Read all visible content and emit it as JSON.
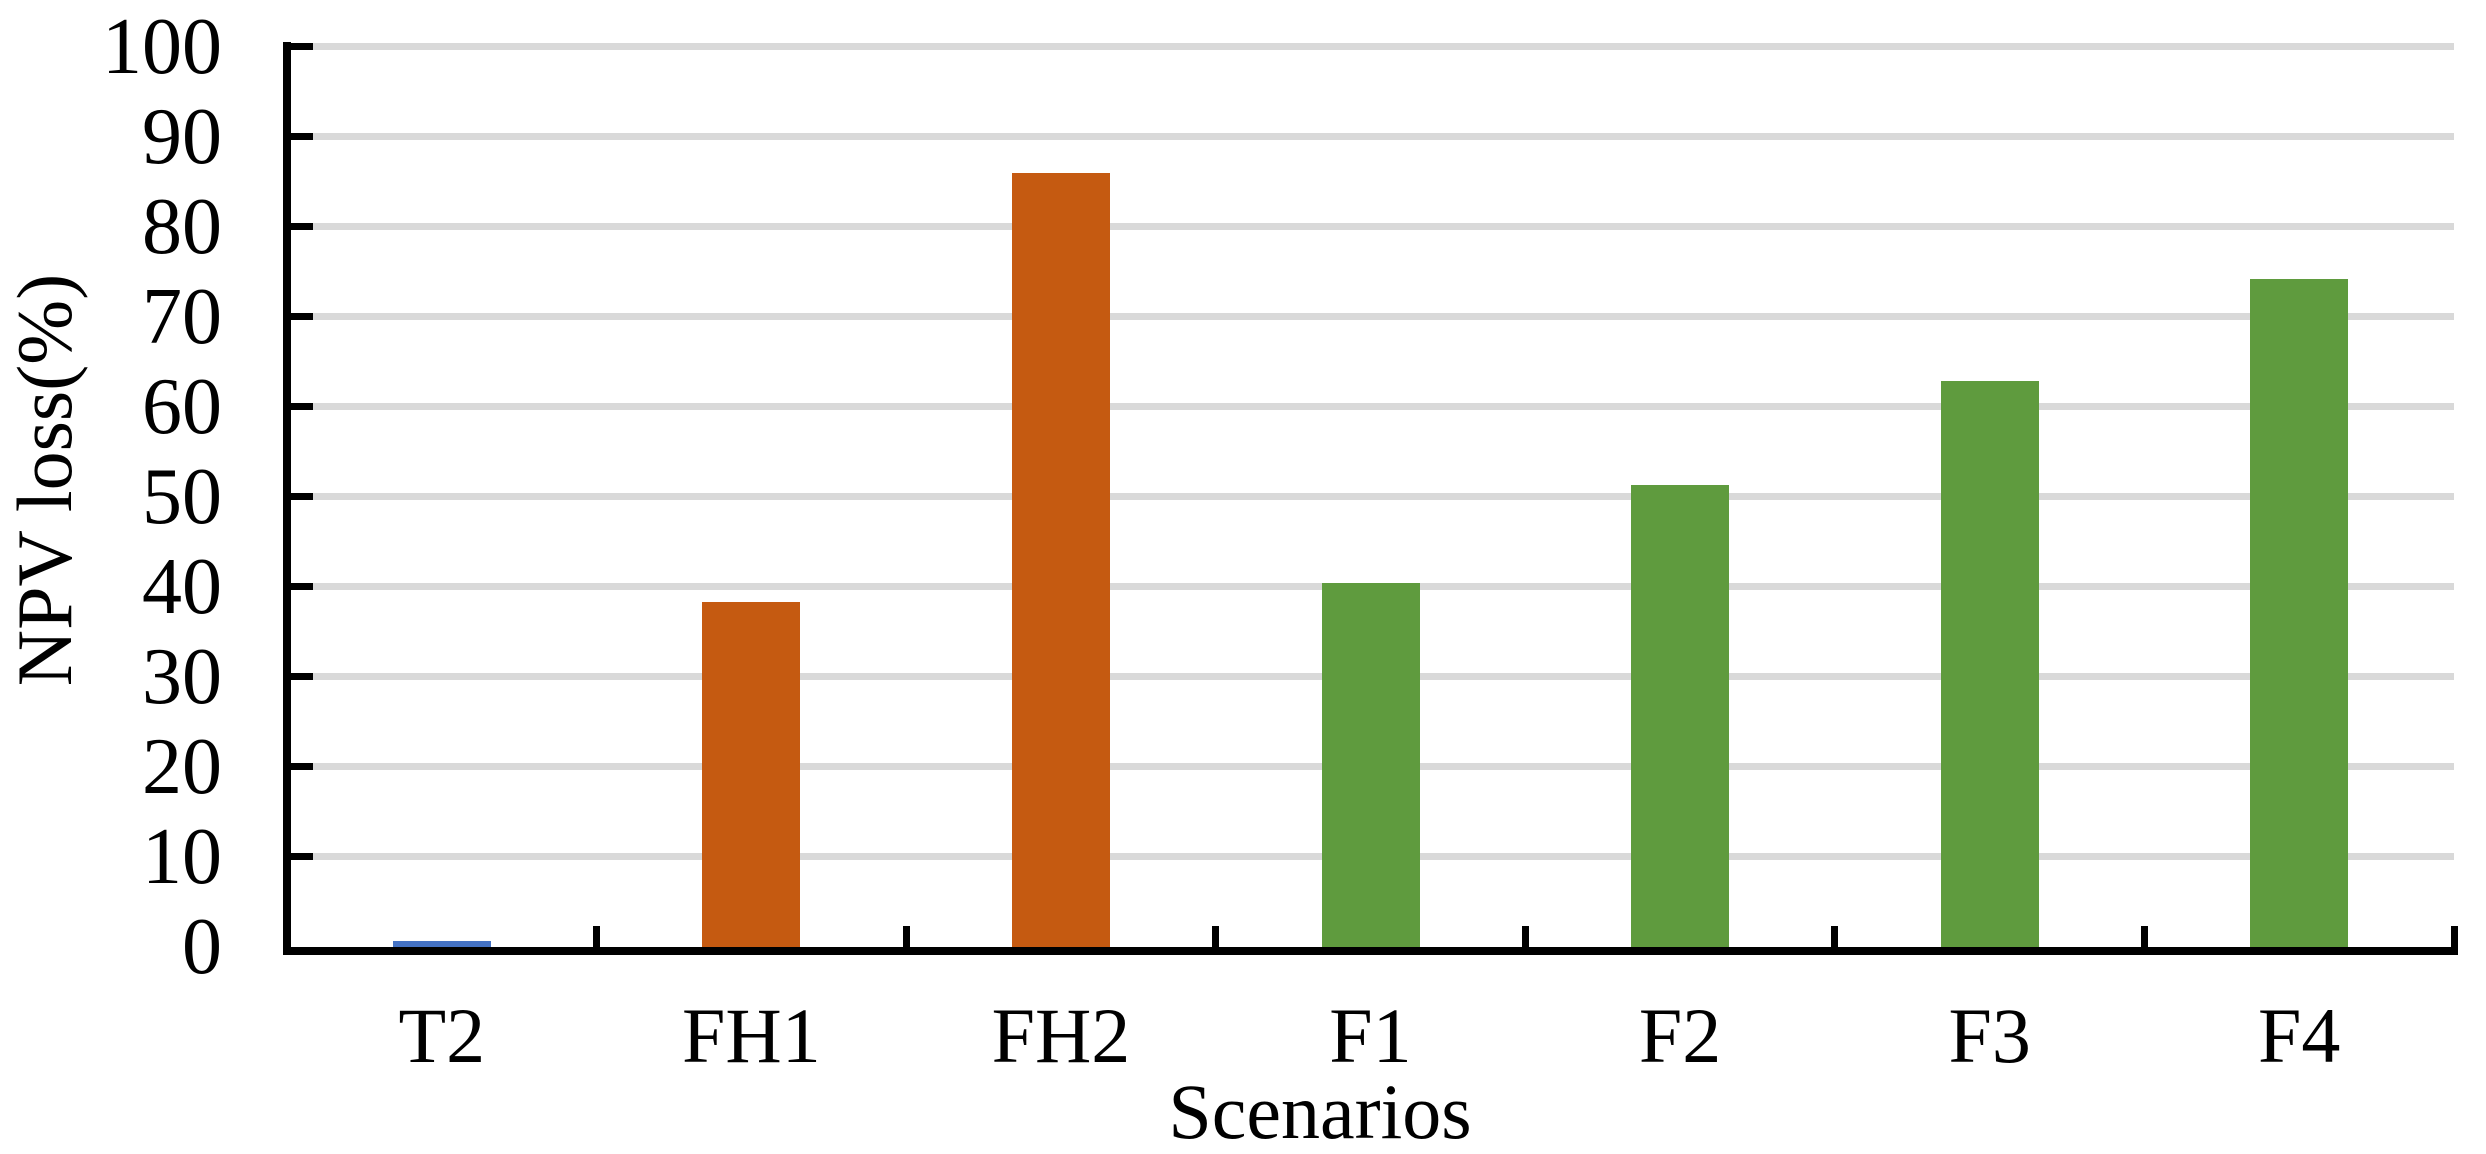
{
  "chart_data": {
    "type": "bar",
    "title": "",
    "xlabel": "Scenarios",
    "ylabel": "NPV loss(%)",
    "categories": [
      "T2",
      "FH1",
      "FH2",
      "F1",
      "F2",
      "F3",
      "F4"
    ],
    "values": [
      0.7,
      38.3,
      85.9,
      40.4,
      51.3,
      62.8,
      74.2
    ],
    "bar_colors": [
      "#4472C4",
      "#C55A11",
      "#C55A11",
      "#5F9B3E",
      "#5F9B3E",
      "#5F9B3E",
      "#5F9B3E"
    ],
    "series_color_meaning": {
      "blue": "#4472C4",
      "orange": "#C55A11",
      "green": "#5F9B3E"
    },
    "ylim": [
      0,
      100
    ],
    "yticks": [
      0,
      10,
      20,
      30,
      40,
      50,
      60,
      70,
      80,
      90,
      100
    ],
    "ytick_labels": [
      "0",
      "10",
      "20",
      "30",
      "40",
      "50",
      "60",
      "70",
      "80",
      "90",
      "100"
    ],
    "grid": "horizontal",
    "gridline_color": "#D9D9D9",
    "axis_color": "#000000",
    "background_color": "#FFFFFF",
    "legend": null
  }
}
